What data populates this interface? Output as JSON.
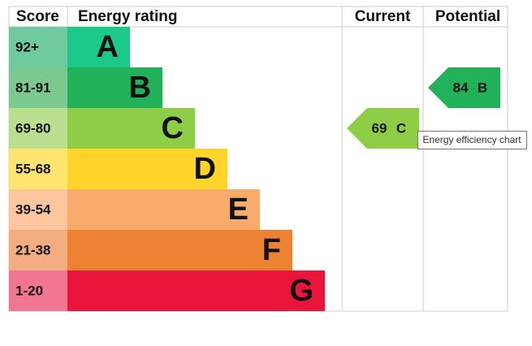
{
  "header": {
    "score": "Score",
    "rating": "Energy rating",
    "current": "Current",
    "potential": "Potential"
  },
  "bands": [
    {
      "score": "92+",
      "letter": "A",
      "color": "#1cc98a",
      "score_color": "#6fcaa0"
    },
    {
      "score": "81-91",
      "letter": "B",
      "color": "#21b158",
      "score_color": "#7bc98e"
    },
    {
      "score": "69-80",
      "letter": "C",
      "color": "#8dce46",
      "score_color": "#badf8f"
    },
    {
      "score": "55-68",
      "letter": "D",
      "color": "#ffd42a",
      "score_color": "#ffe46e"
    },
    {
      "score": "39-54",
      "letter": "E",
      "color": "#f9ab6b",
      "score_color": "#fcc69f"
    },
    {
      "score": "21-38",
      "letter": "F",
      "color": "#ee8233",
      "score_color": "#f4ad80"
    },
    {
      "score": "1-20",
      "letter": "G",
      "color": "#e9153b",
      "score_color": "#f27591"
    }
  ],
  "current": {
    "value": 69,
    "letter": "C"
  },
  "potential": {
    "value": 84,
    "letter": "B"
  },
  "tooltip": "Energy efficiency chart"
}
